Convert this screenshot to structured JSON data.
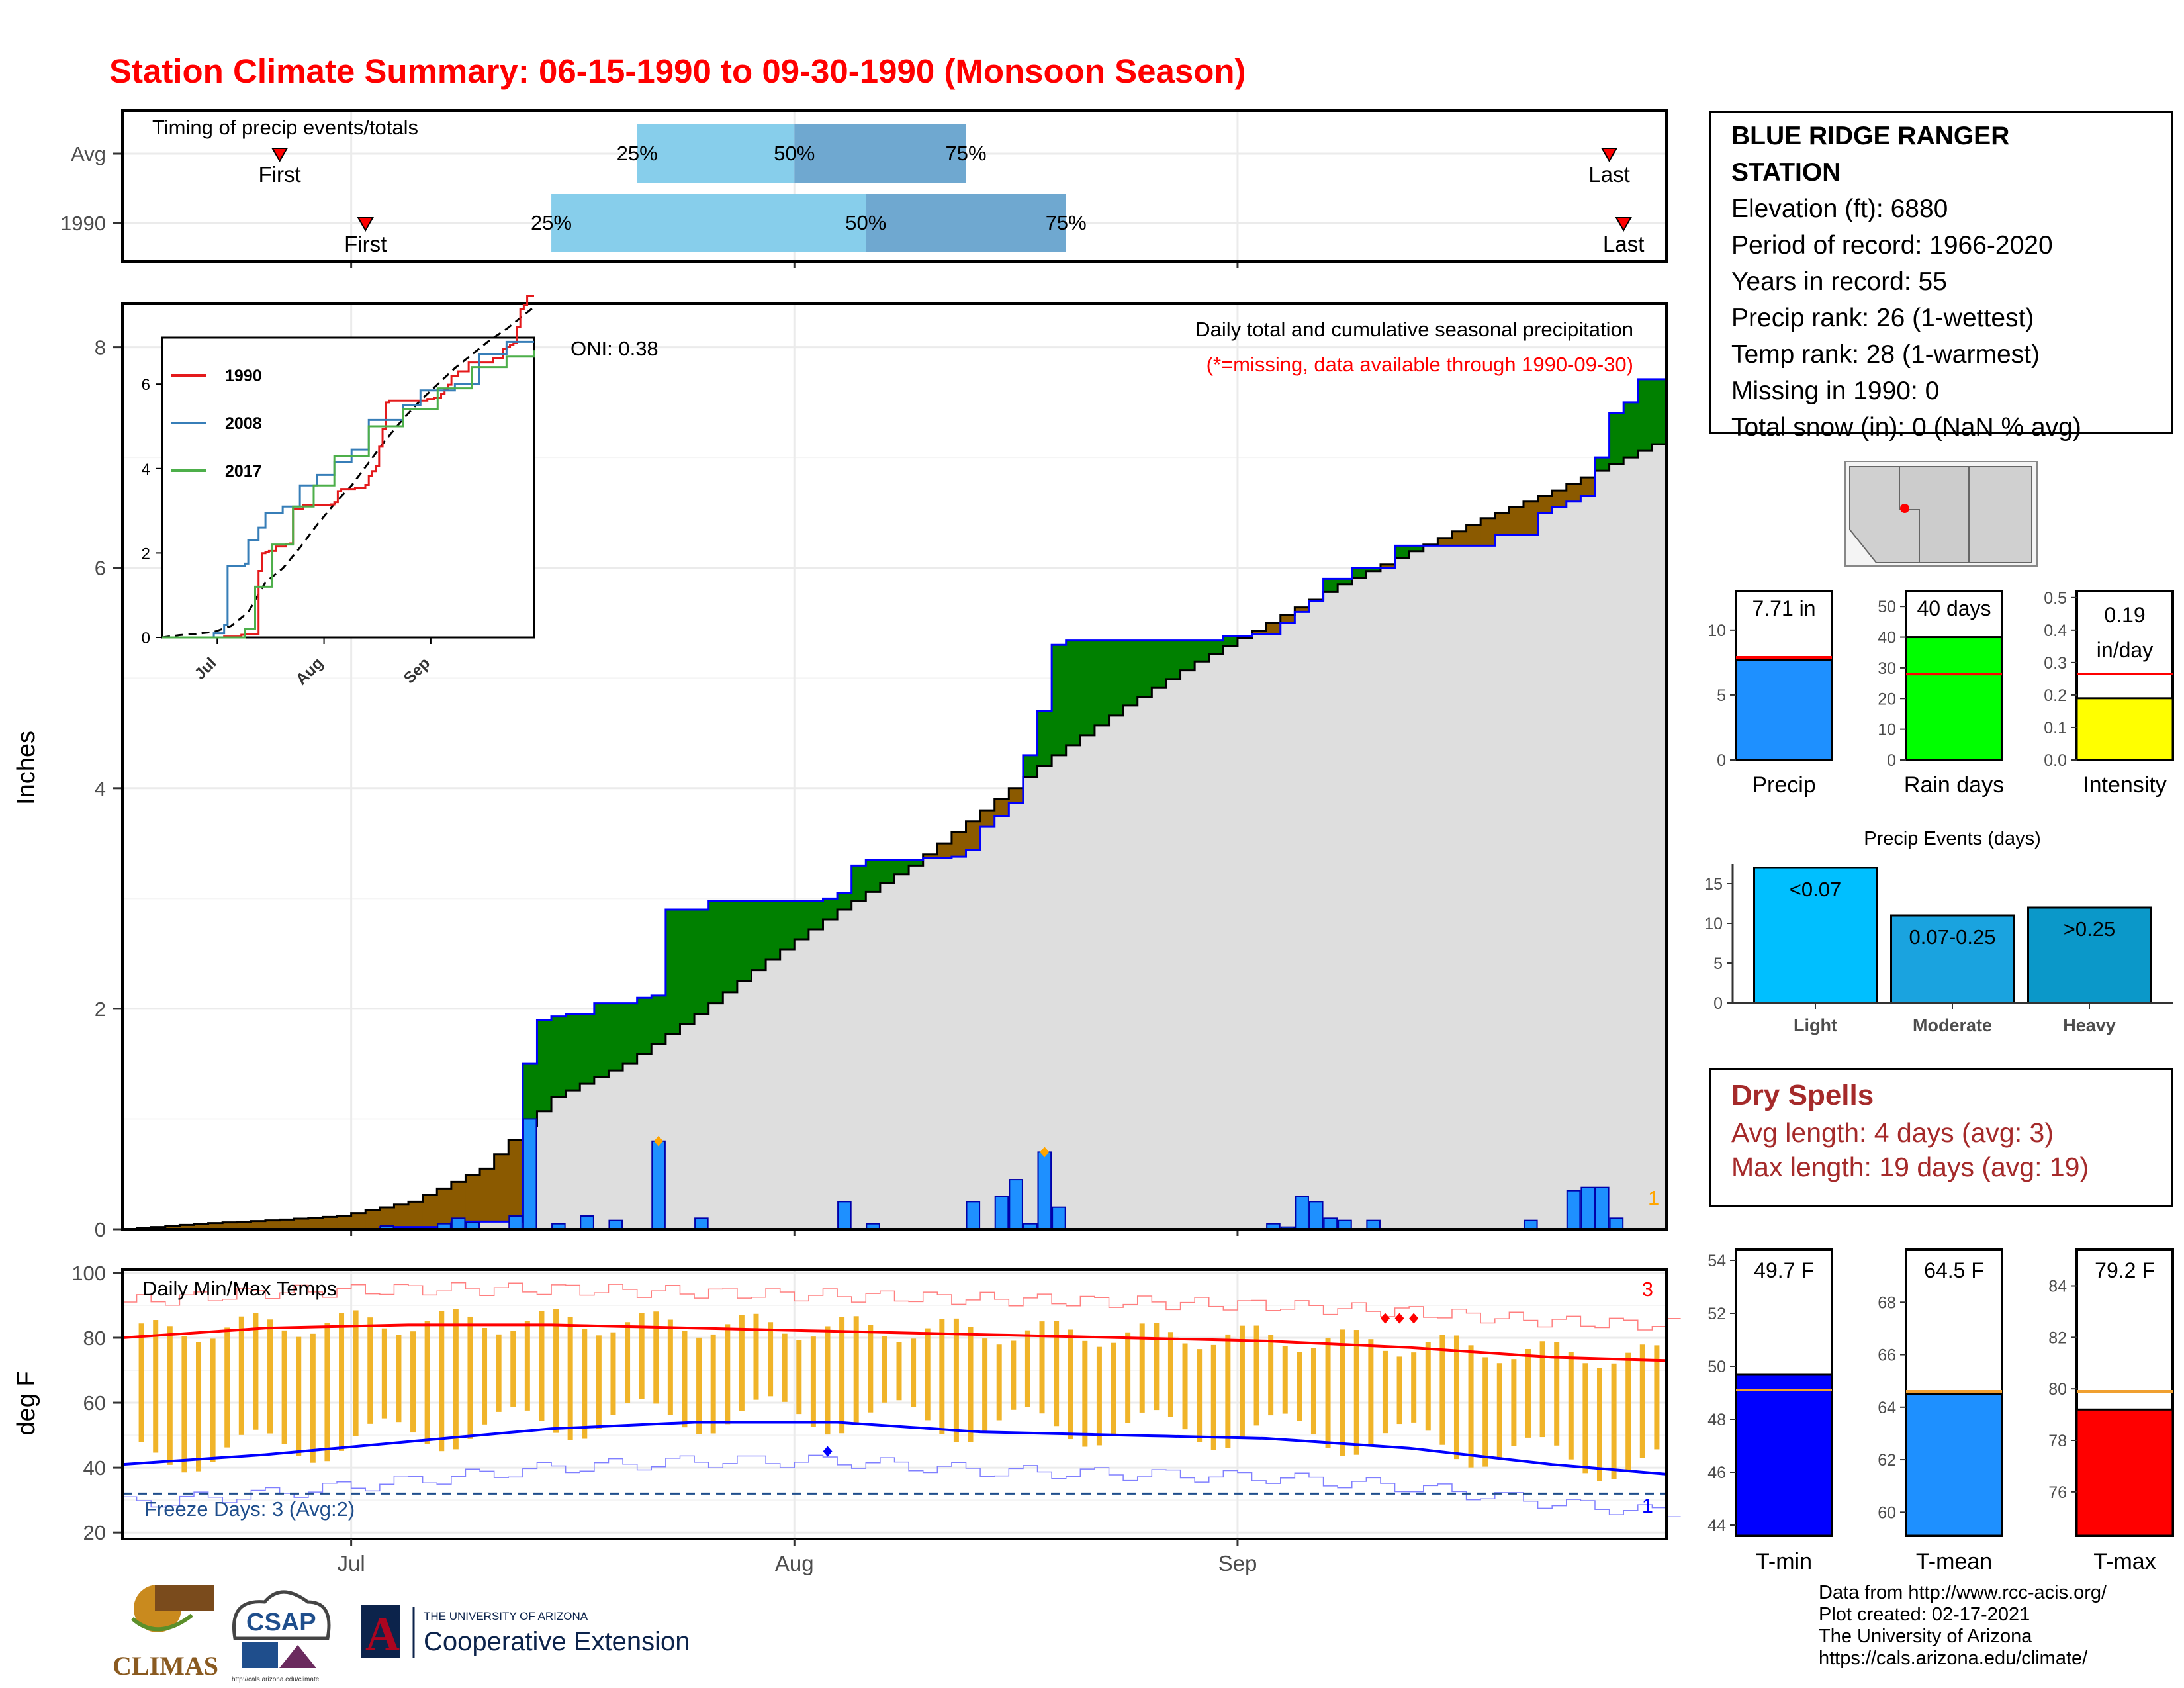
{
  "title": "Station Climate Summary: 06-15-1990 to 09-30-1990 (Monsoon Season)",
  "info": {
    "station_line1": "BLUE RIDGE RANGER",
    "station_line2": "STATION",
    "elevation": "Elevation (ft): 6880",
    "period": "Period of record: 1966-2020",
    "years": "Years in record: 55",
    "precip_rank": "Precip rank: 26 (1-wettest)",
    "temp_rank": "Temp rank: 28 (1-warmest)",
    "missing": "Missing in 1990: 0",
    "snow": "Total snow (in): 0 (NaN % avg)"
  },
  "dry_spells": {
    "title": "Dry Spells",
    "avg_length": "Avg length: 4 days (avg: 3)",
    "max_length": "Max length: 19 days (avg: 19)"
  },
  "credits": [
    "Data from http://www.rcc-acis.org/",
    "Plot created: 02-17-2021",
    "The University of Arizona",
    "https://cals.arizona.edu/climate/"
  ],
  "logos": {
    "climas": "CLIMAS",
    "csap": "CSAP",
    "csap_url": "http://cals.arizona.edu/climate",
    "ua_top": "THE UNIVERSITY OF ARIZONA",
    "ua_bottom": "Cooperative Extension",
    "ua_letter": "A"
  },
  "colors": {
    "title": "#ff0000",
    "precip_bar": "#1e90ff",
    "above_avg": "#008000",
    "below_avg": "#8b5a00",
    "tmax_line": "#ff0000",
    "tmin_line": "#0000ff",
    "temp_range": "#f0b429",
    "raindays": "#00ff00",
    "intensity": "#ffff00",
    "light": "#00bfff",
    "moderate": "#1aa3df",
    "heavy": "#0b98c9"
  },
  "chart_data": [
    {
      "id": "timing",
      "type": "bar",
      "title": "Timing of precip events/totals",
      "categories": [
        "Avg",
        "1990"
      ],
      "series": [
        {
          "name": "Avg",
          "first": "06-26",
          "p25": "07-21",
          "p50": "08-01",
          "p75": "08-13",
          "last": "09-27",
          "first_label": "First",
          "last_label": "Last",
          "p25_label": "25%",
          "p50_label": "50%",
          "p75_label": "75%"
        },
        {
          "name": "1990",
          "first": "07-02",
          "p25": "07-15",
          "p50": "08-06",
          "p75": "08-20",
          "last": "09-28",
          "first_label": "First",
          "last_label": "Last",
          "p25_label": "25%",
          "p50_label": "50%",
          "p75_label": "75%"
        }
      ],
      "x_ticks": [
        "Jul",
        "Aug",
        "Sep"
      ]
    },
    {
      "id": "precip",
      "type": "area",
      "title": "Daily total and cumulative seasonal precipitation",
      "subtitle": "(*=missing, data available through 1990-09-30)",
      "oni": "ONI: 0.38",
      "ylabel": "Inches",
      "ylim": [
        0,
        8.4
      ],
      "y_ticks": [
        0,
        2,
        4,
        6,
        8
      ],
      "x_ticks": [
        "Jul",
        "Aug",
        "Sep"
      ],
      "count_label": "1",
      "cumulative_1990": [
        [
          0,
          0
        ],
        [
          17,
          0
        ],
        [
          18,
          0.02
        ],
        [
          22,
          0.02
        ],
        [
          23,
          0.06
        ],
        [
          24,
          0.07
        ],
        [
          28,
          1.5
        ],
        [
          29,
          1.9
        ],
        [
          30,
          1.93
        ],
        [
          31,
          1.95
        ],
        [
          33,
          2.05
        ],
        [
          36,
          2.1
        ],
        [
          37,
          2.12
        ],
        [
          38,
          2.9
        ],
        [
          40,
          2.9
        ],
        [
          41,
          2.98
        ],
        [
          49,
          3.0
        ],
        [
          50,
          3.05
        ],
        [
          51,
          3.3
        ],
        [
          52,
          3.35
        ],
        [
          54,
          3.35
        ],
        [
          56,
          3.37
        ],
        [
          57,
          3.37
        ],
        [
          58,
          3.38
        ],
        [
          59,
          3.44
        ],
        [
          60,
          3.65
        ],
        [
          61,
          3.75
        ],
        [
          62,
          3.87
        ],
        [
          63,
          4.3
        ],
        [
          64,
          4.7
        ],
        [
          65,
          5.3
        ],
        [
          66,
          5.34
        ],
        [
          75,
          5.34
        ],
        [
          76,
          5.34
        ],
        [
          77,
          5.38
        ],
        [
          78,
          5.38
        ],
        [
          79,
          5.4
        ],
        [
          81,
          5.5
        ],
        [
          82,
          5.6
        ],
        [
          83,
          5.7
        ],
        [
          84,
          5.9
        ],
        [
          86,
          6.0
        ],
        [
          87,
          6.0
        ],
        [
          88,
          6.0
        ],
        [
          89,
          6.2
        ],
        [
          91,
          6.2
        ],
        [
          93,
          6.2
        ],
        [
          95,
          6.2
        ],
        [
          96,
          6.3
        ],
        [
          98,
          6.3
        ],
        [
          99,
          6.5
        ],
        [
          100,
          6.55
        ],
        [
          101,
          6.6
        ],
        [
          102,
          6.65
        ],
        [
          103,
          7.0
        ],
        [
          104,
          7.4
        ],
        [
          105,
          7.5
        ],
        [
          106,
          7.71
        ],
        [
          107,
          7.71
        ],
        [
          108,
          7.71
        ]
      ],
      "cumulative_avg": [
        [
          0,
          0
        ],
        [
          5,
          0.05
        ],
        [
          10,
          0.08
        ],
        [
          15,
          0.12
        ],
        [
          20,
          0.25
        ],
        [
          25,
          0.55
        ],
        [
          30,
          1.2
        ],
        [
          35,
          1.5
        ],
        [
          40,
          1.95
        ],
        [
          45,
          2.45
        ],
        [
          50,
          2.9
        ],
        [
          55,
          3.3
        ],
        [
          60,
          3.8
        ],
        [
          65,
          4.3
        ],
        [
          70,
          4.75
        ],
        [
          75,
          5.15
        ],
        [
          80,
          5.5
        ],
        [
          85,
          5.85
        ],
        [
          90,
          6.15
        ],
        [
          95,
          6.45
        ],
        [
          100,
          6.7
        ],
        [
          105,
          7.0
        ],
        [
          108,
          7.18
        ]
      ],
      "daily_1990": [
        [
          18,
          0.03
        ],
        [
          22,
          0.05
        ],
        [
          23,
          0.1
        ],
        [
          24,
          0.06
        ],
        [
          27,
          0.12
        ],
        [
          28,
          1.0
        ],
        [
          30,
          0.05
        ],
        [
          32,
          0.12
        ],
        [
          34,
          0.08
        ],
        [
          37,
          0.8
        ],
        [
          40,
          0.1
        ],
        [
          50,
          0.25
        ],
        [
          52,
          0.05
        ],
        [
          59,
          0.25
        ],
        [
          61,
          0.3
        ],
        [
          62,
          0.45
        ],
        [
          63,
          0.05
        ],
        [
          64,
          0.7
        ],
        [
          65,
          0.2
        ],
        [
          80,
          0.05
        ],
        [
          81,
          0.02
        ],
        [
          82,
          0.3
        ],
        [
          83,
          0.25
        ],
        [
          84,
          0.1
        ],
        [
          85,
          0.08
        ],
        [
          87,
          0.08
        ],
        [
          98,
          0.08
        ],
        [
          101,
          0.35
        ],
        [
          102,
          0.38
        ],
        [
          103,
          0.38
        ],
        [
          104,
          0.1
        ]
      ],
      "missing_marks": [
        [
          37,
          0.8
        ],
        [
          64,
          0.7
        ]
      ]
    },
    {
      "id": "inset",
      "type": "line",
      "ylim": [
        0,
        7.1
      ],
      "y_ticks": [
        0,
        2,
        4,
        6
      ],
      "x_ticks": [
        "Jul",
        "Aug",
        "Sep"
      ],
      "series": [
        {
          "name": "1990",
          "color": "#e41a1c"
        },
        {
          "name": "2008",
          "color": "#377eb8"
        },
        {
          "name": "2017",
          "color": "#4daf4a"
        }
      ]
    },
    {
      "id": "temps",
      "type": "line",
      "title": "Daily Min/Max Temps",
      "ylabel": "deg F",
      "ylim": [
        18,
        101
      ],
      "y_ticks": [
        20,
        40,
        60,
        80,
        100
      ],
      "x_ticks": [
        "Jul",
        "Aug",
        "Sep"
      ],
      "freeze_label": "Freeze Days: 3 (Avg:2)",
      "freeze_line": 32,
      "hot_count": "3",
      "cold_count": "1",
      "avg_tmax": [
        [
          0,
          80
        ],
        [
          10,
          83
        ],
        [
          20,
          84
        ],
        [
          30,
          84
        ],
        [
          40,
          83
        ],
        [
          50,
          82
        ],
        [
          60,
          81
        ],
        [
          70,
          80
        ],
        [
          80,
          79
        ],
        [
          90,
          77
        ],
        [
          100,
          74
        ],
        [
          108,
          73
        ]
      ],
      "avg_tmin": [
        [
          0,
          41
        ],
        [
          10,
          44
        ],
        [
          20,
          48
        ],
        [
          30,
          52
        ],
        [
          40,
          54
        ],
        [
          50,
          54
        ],
        [
          60,
          51
        ],
        [
          70,
          50
        ],
        [
          80,
          49
        ],
        [
          90,
          46
        ],
        [
          100,
          41
        ],
        [
          108,
          38
        ]
      ],
      "hot_marks": [
        88,
        89,
        90
      ],
      "cold_marks": [
        49
      ]
    },
    {
      "id": "season_bars",
      "type": "bar",
      "categories": [
        "Precip",
        "Rain days",
        "Intensity"
      ],
      "panels": [
        {
          "name": "Precip",
          "value": 7.71,
          "avg": 7.9,
          "label": "7.71 in",
          "ylim": [
            0,
            13
          ],
          "ticks": [
            0,
            5,
            10
          ]
        },
        {
          "name": "Rain days",
          "value": 40,
          "avg": 28,
          "label": "40 days",
          "ylim": [
            0,
            55
          ],
          "ticks": [
            0,
            10,
            20,
            30,
            40,
            50
          ]
        },
        {
          "name": "Intensity",
          "value": 0.19,
          "avg": 0.265,
          "label": "0.19",
          "label2": "in/day",
          "ylim": [
            0,
            0.52
          ],
          "ticks": [
            0.0,
            0.1,
            0.2,
            0.3,
            0.4,
            0.5
          ]
        }
      ]
    },
    {
      "id": "events",
      "type": "bar",
      "title": "Precip Events (days)",
      "categories": [
        "Light",
        "Moderate",
        "Heavy"
      ],
      "values": [
        17,
        11,
        12
      ],
      "labels": [
        "<0.07",
        "0.07-0.25",
        ">0.25"
      ],
      "ylim": [
        0,
        17.5
      ],
      "y_ticks": [
        0,
        5,
        10,
        15
      ]
    },
    {
      "id": "temp_bars",
      "type": "bar",
      "categories": [
        "T-min",
        "T-mean",
        "T-max"
      ],
      "panels": [
        {
          "name": "T-min",
          "value": 49.7,
          "avg": 49.1,
          "label": "49.7 F",
          "ylim": [
            43.6,
            54.4
          ],
          "ticks": [
            44,
            46,
            48,
            50,
            52,
            54
          ]
        },
        {
          "name": "T-mean",
          "value": 64.5,
          "avg": 64.6,
          "label": "64.5 F",
          "ylim": [
            59.1,
            70.0
          ],
          "ticks": [
            60,
            62,
            64,
            66,
            68
          ]
        },
        {
          "name": "T-max",
          "value": 79.2,
          "avg": 79.9,
          "label": "79.2 F",
          "ylim": [
            74.3,
            85.4
          ],
          "ticks": [
            76,
            78,
            80,
            82,
            84
          ]
        }
      ]
    }
  ]
}
